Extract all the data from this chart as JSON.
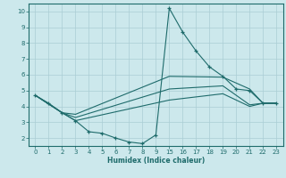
{
  "xlabel": "Humidex (Indice chaleur)",
  "bg_color": "#cce8ec",
  "grid_color": "#aacdd4",
  "line_color": "#1e6b6b",
  "xtick_labels": [
    "0",
    "1",
    "2",
    "3",
    "4",
    "5",
    "6",
    "7",
    "8",
    "9",
    "15",
    "16",
    "17",
    "18",
    "19",
    "20",
    "21",
    "22",
    "23"
  ],
  "xtick_pos": [
    0,
    1,
    2,
    3,
    4,
    5,
    6,
    7,
    8,
    9,
    10,
    11,
    12,
    13,
    14,
    15,
    16,
    17,
    18
  ],
  "yticks": [
    2,
    3,
    4,
    5,
    6,
    7,
    8,
    9,
    10
  ],
  "xlim": [
    -0.5,
    18.5
  ],
  "ylim": [
    1.5,
    10.5
  ],
  "line1_x": [
    0,
    1,
    2,
    3,
    4,
    5,
    6,
    7,
    8,
    9,
    10,
    11,
    12,
    13,
    14,
    15,
    16,
    17,
    18
  ],
  "line1_y": [
    4.7,
    4.2,
    3.6,
    3.1,
    2.4,
    2.3,
    2.0,
    1.75,
    1.65,
    2.2,
    10.2,
    8.7,
    7.5,
    6.5,
    5.9,
    5.1,
    5.0,
    4.2,
    4.2
  ],
  "line2_x": [
    0,
    2,
    3,
    10,
    14,
    16,
    17,
    18
  ],
  "line2_y": [
    4.7,
    3.6,
    3.5,
    5.9,
    5.85,
    5.1,
    4.2,
    4.2
  ],
  "line3_x": [
    0,
    2,
    3,
    10,
    14,
    16,
    17,
    18
  ],
  "line3_y": [
    4.7,
    3.6,
    3.3,
    5.1,
    5.3,
    4.1,
    4.2,
    4.2
  ],
  "line4_x": [
    0,
    2,
    3,
    10,
    14,
    16,
    17,
    18
  ],
  "line4_y": [
    4.7,
    3.6,
    3.1,
    4.4,
    4.8,
    4.0,
    4.2,
    4.2
  ]
}
